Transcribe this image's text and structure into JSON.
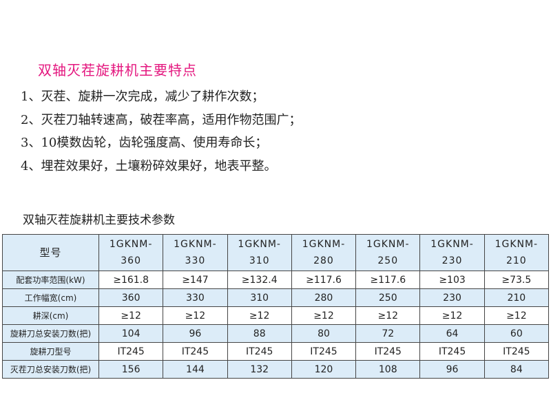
{
  "title": "双轴灭茬旋耕机主要特点",
  "features": [
    "1、灭茬、旋耕一次完成，减少了耕作次数；",
    "2、灭茬刀轴转速高，破茬率高，适用作物范围广；",
    "3、10模数齿轮，齿轮强度高、使用寿命长；",
    "4、埋茬效果好，土壤粉碎效果好，地表平整。"
  ],
  "colors": {
    "title": "#e4177f",
    "table_fill": "#dcecf8"
  },
  "table": {
    "title": "双轴灭茬旋耕机主要技术参数",
    "header_label": "型号",
    "models": [
      [
        "1GKNM-",
        "360"
      ],
      [
        "1GKNM-",
        "330"
      ],
      [
        "1GKNM-",
        "310"
      ],
      [
        "1GKNM-",
        "280"
      ],
      [
        "1GKNM-",
        "250"
      ],
      [
        "1GKNM-",
        "230"
      ],
      [
        "1GKNM-",
        "210"
      ]
    ],
    "rows": [
      {
        "label": "配套功率范围(kW)",
        "values": [
          "≥161.8",
          "≥147",
          "≥132.4",
          "≥117.6",
          "≥117.6",
          "≥103",
          "≥73.5"
        ]
      },
      {
        "label": "工作幅宽(cm)",
        "values": [
          "360",
          "330",
          "310",
          "280",
          "250",
          "230",
          "210"
        ]
      },
      {
        "label": "耕深(cm)",
        "values": [
          "≥12",
          "≥12",
          "≥12",
          "≥12",
          "≥12",
          "≥12",
          "≥12"
        ]
      },
      {
        "label": "旋耕刀总安装刀数(把)",
        "values": [
          "104",
          "96",
          "88",
          "80",
          "72",
          "64",
          "60"
        ]
      },
      {
        "label": "旋耕刀型号",
        "values": [
          "IT245",
          "IT245",
          "IT245",
          "IT245",
          "IT245",
          "IT245",
          "IT245"
        ]
      },
      {
        "label": "灭茬刀总安装刀数(把)",
        "values": [
          "156",
          "144",
          "132",
          "120",
          "108",
          "96",
          "84"
        ]
      }
    ]
  }
}
